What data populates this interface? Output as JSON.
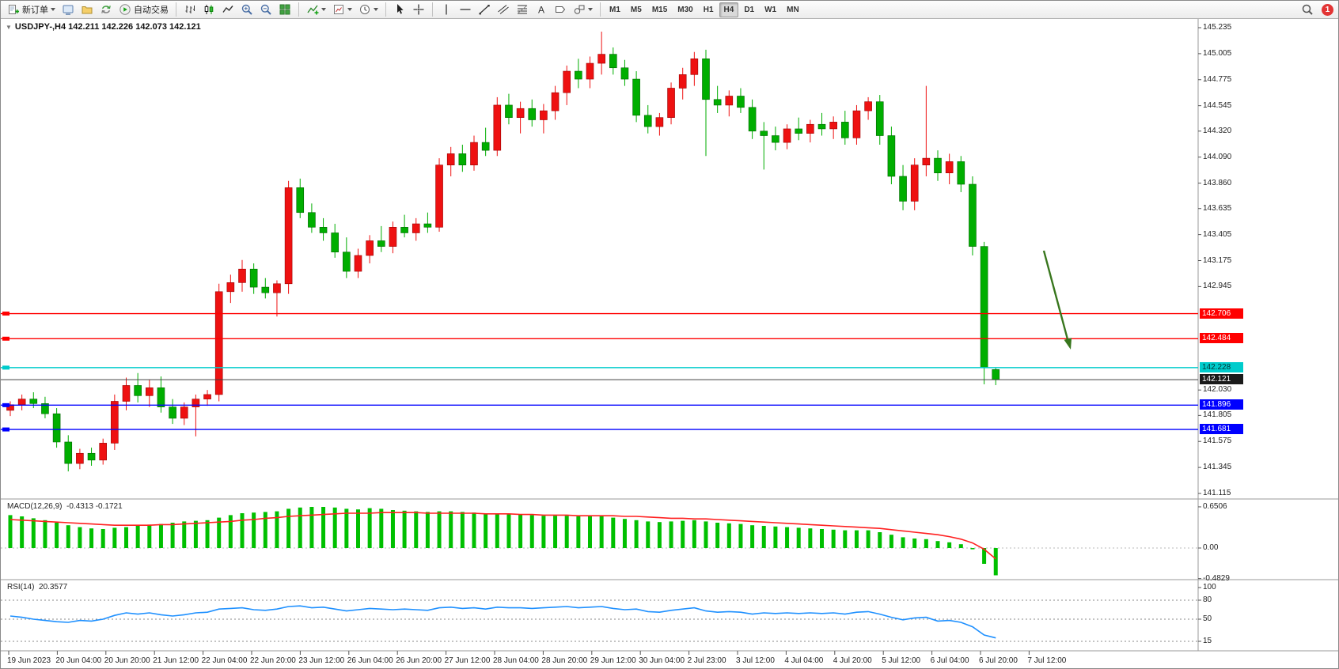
{
  "toolbar": {
    "new_order_label": "新订单",
    "autotrading_label": "自动交易",
    "text_tool_glyph": "A",
    "timeframes": [
      "M1",
      "M5",
      "M15",
      "M30",
      "H1",
      "H4",
      "D1",
      "W1",
      "MN"
    ],
    "active_timeframe": "H4",
    "notification_count": "1"
  },
  "chart": {
    "symbol_ohlc": "USDJPY-,H4  142.211 142.226 142.073 142.121"
  },
  "chart_data": {
    "type": "candlestick",
    "symbol": "USDJPY-",
    "timeframe": "H4",
    "up_color": "#EE1111",
    "down_color": "#00AE00",
    "price_axis": {
      "max": 145.235,
      "min": 141.115,
      "ticks": [
        "145.235",
        "145.005",
        "144.775",
        "144.545",
        "144.320",
        "144.090",
        "143.860",
        "143.635",
        "143.405",
        "143.175",
        "142.945",
        "142.030",
        "141.805",
        "141.575",
        "141.345",
        "141.115"
      ]
    },
    "hlines": [
      {
        "label": "142.706",
        "price": 142.706,
        "color": "#FF0000",
        "text_color": "#FFFFFF"
      },
      {
        "label": "142.484",
        "price": 142.484,
        "color": "#FF0000",
        "text_color": "#FFFFFF"
      },
      {
        "label": "142.228",
        "price": 142.228,
        "color": "#00CCCC",
        "text_color": "#003333"
      },
      {
        "label": "142.121",
        "price": 142.121,
        "color": "#404040",
        "box_color": "#1A1A1A",
        "text_color": "#FFFFFF",
        "is_price_line": true
      },
      {
        "label": "141.896",
        "price": 141.896,
        "color": "#0000FF",
        "text_color": "#FFFFFF"
      },
      {
        "label": "141.681",
        "price": 141.681,
        "color": "#0000FF",
        "text_color": "#FFFFFF"
      }
    ],
    "candles": [
      [
        141.85,
        141.93,
        141.8,
        141.9
      ],
      [
        141.9,
        141.99,
        141.85,
        141.95
      ],
      [
        141.95,
        142.01,
        141.87,
        141.91
      ],
      [
        141.91,
        141.97,
        141.78,
        141.82
      ],
      [
        141.82,
        141.87,
        141.52,
        141.57
      ],
      [
        141.57,
        141.63,
        141.31,
        141.38
      ],
      [
        141.38,
        141.51,
        141.33,
        141.47
      ],
      [
        141.47,
        141.52,
        141.36,
        141.41
      ],
      [
        141.41,
        141.6,
        141.37,
        141.56
      ],
      [
        141.56,
        141.99,
        141.5,
        141.93
      ],
      [
        141.93,
        142.14,
        141.85,
        142.07
      ],
      [
        142.07,
        142.18,
        141.92,
        141.98
      ],
      [
        141.98,
        142.12,
        141.88,
        142.05
      ],
      [
        142.05,
        142.15,
        141.83,
        141.88
      ],
      [
        141.88,
        141.95,
        141.73,
        141.78
      ],
      [
        141.78,
        141.92,
        141.72,
        141.88
      ],
      [
        141.88,
        141.99,
        141.62,
        141.95
      ],
      [
        141.95,
        142.03,
        141.89,
        141.99
      ],
      [
        141.99,
        142.97,
        141.93,
        142.9
      ],
      [
        142.9,
        143.05,
        142.8,
        142.98
      ],
      [
        142.98,
        143.18,
        142.9,
        143.1
      ],
      [
        143.1,
        143.15,
        142.88,
        142.94
      ],
      [
        142.94,
        143.02,
        142.84,
        142.89
      ],
      [
        142.89,
        143.0,
        142.68,
        142.97
      ],
      [
        142.97,
        143.88,
        142.88,
        143.82
      ],
      [
        143.82,
        143.9,
        143.55,
        143.6
      ],
      [
        143.6,
        143.68,
        143.42,
        143.47
      ],
      [
        143.47,
        143.55,
        143.35,
        143.42
      ],
      [
        143.42,
        143.5,
        143.2,
        143.25
      ],
      [
        143.25,
        143.38,
        143.02,
        143.08
      ],
      [
        143.08,
        143.28,
        143.02,
        143.22
      ],
      [
        143.22,
        143.4,
        143.15,
        143.35
      ],
      [
        143.35,
        143.48,
        143.25,
        143.3
      ],
      [
        143.3,
        143.52,
        143.24,
        143.47
      ],
      [
        143.47,
        143.58,
        143.38,
        143.42
      ],
      [
        143.42,
        143.55,
        143.35,
        143.5
      ],
      [
        143.5,
        143.6,
        143.42,
        143.47
      ],
      [
        143.47,
        144.08,
        143.43,
        144.02
      ],
      [
        144.02,
        144.18,
        143.92,
        144.12
      ],
      [
        144.12,
        144.2,
        143.96,
        144.02
      ],
      [
        144.02,
        144.28,
        143.97,
        144.22
      ],
      [
        144.22,
        144.35,
        144.1,
        144.15
      ],
      [
        144.15,
        144.62,
        144.1,
        144.55
      ],
      [
        144.55,
        144.65,
        144.38,
        144.44
      ],
      [
        144.44,
        144.58,
        144.3,
        144.52
      ],
      [
        144.52,
        144.6,
        144.36,
        144.42
      ],
      [
        144.42,
        144.56,
        144.3,
        144.5
      ],
      [
        144.5,
        144.72,
        144.42,
        144.66
      ],
      [
        144.66,
        144.9,
        144.55,
        144.85
      ],
      [
        144.85,
        144.96,
        144.7,
        144.78
      ],
      [
        144.78,
        144.98,
        144.7,
        144.92
      ],
      [
        144.92,
        145.2,
        144.82,
        145.0
      ],
      [
        145.0,
        145.06,
        144.82,
        144.88
      ],
      [
        144.88,
        144.95,
        144.72,
        144.78
      ],
      [
        144.78,
        144.85,
        144.4,
        144.46
      ],
      [
        144.46,
        144.55,
        144.3,
        144.36
      ],
      [
        144.36,
        144.48,
        144.28,
        144.44
      ],
      [
        144.44,
        144.75,
        144.38,
        144.7
      ],
      [
        144.7,
        144.88,
        144.6,
        144.82
      ],
      [
        144.82,
        145.02,
        144.72,
        144.96
      ],
      [
        144.96,
        145.04,
        144.1,
        144.6
      ],
      [
        144.6,
        144.72,
        144.48,
        144.55
      ],
      [
        144.55,
        144.68,
        144.45,
        144.63
      ],
      [
        144.63,
        144.7,
        144.48,
        144.53
      ],
      [
        144.53,
        144.6,
        144.25,
        144.32
      ],
      [
        144.32,
        144.4,
        143.98,
        144.28
      ],
      [
        144.28,
        144.36,
        144.15,
        144.22
      ],
      [
        144.22,
        144.38,
        144.16,
        144.34
      ],
      [
        144.34,
        144.44,
        144.24,
        144.3
      ],
      [
        144.3,
        144.42,
        144.22,
        144.38
      ],
      [
        144.38,
        144.48,
        144.28,
        144.34
      ],
      [
        144.34,
        144.45,
        144.25,
        144.4
      ],
      [
        144.4,
        144.5,
        144.2,
        144.26
      ],
      [
        144.26,
        144.55,
        144.2,
        144.5
      ],
      [
        144.5,
        144.62,
        144.42,
        144.58
      ],
      [
        144.58,
        144.64,
        144.2,
        144.28
      ],
      [
        144.28,
        144.36,
        143.85,
        143.92
      ],
      [
        143.92,
        144.02,
        143.62,
        143.7
      ],
      [
        143.7,
        144.08,
        143.62,
        144.02
      ],
      [
        144.02,
        144.72,
        143.92,
        144.08
      ],
      [
        144.08,
        144.15,
        143.88,
        143.95
      ],
      [
        143.95,
        144.12,
        143.85,
        144.05
      ],
      [
        144.05,
        144.1,
        143.78,
        143.85
      ],
      [
        143.85,
        143.92,
        143.22,
        143.3
      ],
      [
        143.3,
        143.34,
        142.08,
        142.23
      ],
      [
        142.211,
        142.226,
        142.073,
        142.121
      ]
    ],
    "time_labels": [
      "19 Jun 2023",
      "20 Jun 04:00",
      "20 Jun 20:00",
      "21 Jun 12:00",
      "22 Jun 04:00",
      "22 Jun 20:00",
      "23 Jun 12:00",
      "26 Jun 04:00",
      "26 Jun 20:00",
      "27 Jun 12:00",
      "28 Jun 04:00",
      "28 Jun 20:00",
      "29 Jun 12:00",
      "30 Jun 04:00",
      "2 Jul 23:00",
      "3 Jul 12:00",
      "4 Jul 04:00",
      "4 Jul 20:00",
      "5 Jul 12:00",
      "6 Jul 04:00",
      "6 Jul 20:00",
      "7 Jul 12:00"
    ],
    "macd": {
      "label": "MACD(12,26,9)",
      "values_text": "-0.4313 -0.1721",
      "axis_labels": [
        "0.6506",
        "0.00",
        "-0.4829"
      ],
      "axis_values": [
        0.6506,
        0,
        -0.4829
      ],
      "hist_color": "#00C000",
      "signal_color": "#FF2020",
      "hist": [
        0.52,
        0.5,
        0.47,
        0.44,
        0.4,
        0.36,
        0.33,
        0.31,
        0.3,
        0.32,
        0.33,
        0.35,
        0.37,
        0.38,
        0.4,
        0.42,
        0.43,
        0.44,
        0.48,
        0.52,
        0.55,
        0.56,
        0.57,
        0.58,
        0.62,
        0.64,
        0.65,
        0.65,
        0.64,
        0.62,
        0.61,
        0.63,
        0.62,
        0.6,
        0.59,
        0.58,
        0.57,
        0.58,
        0.58,
        0.57,
        0.56,
        0.55,
        0.55,
        0.54,
        0.53,
        0.52,
        0.51,
        0.51,
        0.51,
        0.5,
        0.5,
        0.5,
        0.48,
        0.46,
        0.44,
        0.42,
        0.41,
        0.42,
        0.43,
        0.44,
        0.42,
        0.4,
        0.39,
        0.38,
        0.36,
        0.35,
        0.34,
        0.33,
        0.32,
        0.31,
        0.3,
        0.29,
        0.28,
        0.28,
        0.28,
        0.25,
        0.21,
        0.17,
        0.15,
        0.14,
        0.11,
        0.09,
        0.06,
        -0.02,
        -0.25,
        -0.4313
      ],
      "signal": [
        0.45,
        0.44,
        0.43,
        0.42,
        0.41,
        0.4,
        0.39,
        0.38,
        0.37,
        0.36,
        0.36,
        0.36,
        0.36,
        0.37,
        0.37,
        0.38,
        0.39,
        0.4,
        0.41,
        0.42,
        0.44,
        0.45,
        0.47,
        0.48,
        0.5,
        0.51,
        0.52,
        0.53,
        0.54,
        0.55,
        0.55,
        0.55,
        0.56,
        0.56,
        0.56,
        0.56,
        0.55,
        0.55,
        0.55,
        0.55,
        0.55,
        0.54,
        0.54,
        0.54,
        0.53,
        0.53,
        0.52,
        0.52,
        0.52,
        0.51,
        0.51,
        0.51,
        0.51,
        0.5,
        0.5,
        0.49,
        0.48,
        0.47,
        0.47,
        0.46,
        0.46,
        0.45,
        0.44,
        0.43,
        0.42,
        0.41,
        0.4,
        0.39,
        0.38,
        0.37,
        0.36,
        0.35,
        0.34,
        0.33,
        0.32,
        0.31,
        0.29,
        0.27,
        0.25,
        0.23,
        0.21,
        0.18,
        0.14,
        0.08,
        -0.02,
        -0.1721
      ]
    },
    "rsi": {
      "label": "RSI(14)",
      "value_text": "20.3577",
      "axis_labels": [
        "100",
        "80",
        "50",
        "15"
      ],
      "axis_values": [
        100,
        80,
        50,
        15
      ],
      "levels": [
        80,
        50,
        15
      ],
      "color": "#1E90FF",
      "values": [
        55,
        53,
        50,
        48,
        46,
        45,
        48,
        47,
        50,
        56,
        60,
        58,
        60,
        57,
        55,
        57,
        60,
        61,
        66,
        67,
        68,
        65,
        64,
        66,
        70,
        71,
        68,
        69,
        66,
        63,
        65,
        67,
        66,
        65,
        66,
        65,
        64,
        68,
        69,
        67,
        68,
        66,
        69,
        68,
        68,
        67,
        68,
        69,
        70,
        68,
        69,
        70,
        67,
        65,
        66,
        62,
        61,
        64,
        66,
        68,
        63,
        61,
        62,
        61,
        58,
        60,
        59,
        60,
        59,
        60,
        59,
        60,
        58,
        61,
        62,
        58,
        53,
        49,
        52,
        53,
        47,
        48,
        45,
        38,
        25,
        20.36
      ]
    },
    "annotation_arrow": {
      "color": "#38761D"
    }
  }
}
